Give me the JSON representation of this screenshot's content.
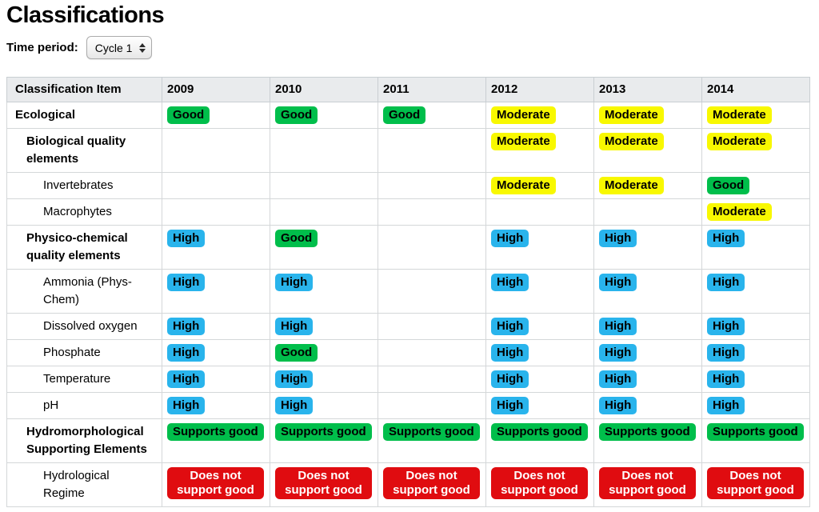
{
  "page": {
    "title": "Classifications"
  },
  "controls": {
    "time_period_label": "Time period:",
    "time_period_value": "Cycle 1"
  },
  "statuses": {
    "good": {
      "bg": "#00be4b",
      "fg": "#000000"
    },
    "moderate": {
      "bg": "#f8f800",
      "fg": "#000000"
    },
    "high": {
      "bg": "#29b4ec",
      "fg": "#000000"
    },
    "supports_good": {
      "bg": "#00be4b",
      "fg": "#000000"
    },
    "does_not_support_good": {
      "bg": "#e00c10",
      "fg": "#ffffff"
    }
  },
  "table": {
    "columns": [
      "Classification Item",
      "2009",
      "2010",
      "2011",
      "2012",
      "2013",
      "2014"
    ],
    "rows": [
      {
        "label": "Ecological",
        "indent": 0,
        "bold": true,
        "cells": [
          {
            "label": "Good",
            "status": "good"
          },
          {
            "label": "Good",
            "status": "good"
          },
          {
            "label": "Good",
            "status": "good"
          },
          {
            "label": "Moderate",
            "status": "moderate"
          },
          {
            "label": "Moderate",
            "status": "moderate"
          },
          {
            "label": "Moderate",
            "status": "moderate"
          }
        ]
      },
      {
        "label": "Biological quality elements",
        "indent": 1,
        "bold": true,
        "cells": [
          null,
          null,
          null,
          {
            "label": "Moderate",
            "status": "moderate"
          },
          {
            "label": "Moderate",
            "status": "moderate"
          },
          {
            "label": "Moderate",
            "status": "moderate"
          }
        ]
      },
      {
        "label": "Invertebrates",
        "indent": 2,
        "bold": false,
        "cells": [
          null,
          null,
          null,
          {
            "label": "Moderate",
            "status": "moderate"
          },
          {
            "label": "Moderate",
            "status": "moderate"
          },
          {
            "label": "Good",
            "status": "good"
          }
        ]
      },
      {
        "label": "Macrophytes",
        "indent": 2,
        "bold": false,
        "cells": [
          null,
          null,
          null,
          null,
          null,
          {
            "label": "Moderate",
            "status": "moderate"
          }
        ]
      },
      {
        "label": "Physico-chemical quality elements",
        "indent": 1,
        "bold": true,
        "cells": [
          {
            "label": "High",
            "status": "high"
          },
          {
            "label": "Good",
            "status": "good"
          },
          null,
          {
            "label": "High",
            "status": "high"
          },
          {
            "label": "High",
            "status": "high"
          },
          {
            "label": "High",
            "status": "high"
          }
        ]
      },
      {
        "label": "Ammonia (Phys-Chem)",
        "indent": 2,
        "bold": false,
        "cells": [
          {
            "label": "High",
            "status": "high"
          },
          {
            "label": "High",
            "status": "high"
          },
          null,
          {
            "label": "High",
            "status": "high"
          },
          {
            "label": "High",
            "status": "high"
          },
          {
            "label": "High",
            "status": "high"
          }
        ]
      },
      {
        "label": "Dissolved oxygen",
        "indent": 2,
        "bold": false,
        "cells": [
          {
            "label": "High",
            "status": "high"
          },
          {
            "label": "High",
            "status": "high"
          },
          null,
          {
            "label": "High",
            "status": "high"
          },
          {
            "label": "High",
            "status": "high"
          },
          {
            "label": "High",
            "status": "high"
          }
        ]
      },
      {
        "label": "Phosphate",
        "indent": 2,
        "bold": false,
        "cells": [
          {
            "label": "High",
            "status": "high"
          },
          {
            "label": "Good",
            "status": "good"
          },
          null,
          {
            "label": "High",
            "status": "high"
          },
          {
            "label": "High",
            "status": "high"
          },
          {
            "label": "High",
            "status": "high"
          }
        ]
      },
      {
        "label": "Temperature",
        "indent": 2,
        "bold": false,
        "cells": [
          {
            "label": "High",
            "status": "high"
          },
          {
            "label": "High",
            "status": "high"
          },
          null,
          {
            "label": "High",
            "status": "high"
          },
          {
            "label": "High",
            "status": "high"
          },
          {
            "label": "High",
            "status": "high"
          }
        ]
      },
      {
        "label": "pH",
        "indent": 2,
        "bold": false,
        "cells": [
          {
            "label": "High",
            "status": "high"
          },
          {
            "label": "High",
            "status": "high"
          },
          null,
          {
            "label": "High",
            "status": "high"
          },
          {
            "label": "High",
            "status": "high"
          },
          {
            "label": "High",
            "status": "high"
          }
        ]
      },
      {
        "label": "Hydromorphological Supporting Elements",
        "indent": 1,
        "bold": true,
        "cells": [
          {
            "label": "Supports good",
            "status": "supports_good"
          },
          {
            "label": "Supports good",
            "status": "supports_good"
          },
          {
            "label": "Supports good",
            "status": "supports_good"
          },
          {
            "label": "Supports good",
            "status": "supports_good"
          },
          {
            "label": "Supports good",
            "status": "supports_good"
          },
          {
            "label": "Supports good",
            "status": "supports_good"
          }
        ]
      },
      {
        "label": "Hydrological Regime",
        "indent": 2,
        "bold": false,
        "cells": [
          {
            "label": "Does not support good",
            "status": "does_not_support_good"
          },
          {
            "label": "Does not support good",
            "status": "does_not_support_good"
          },
          {
            "label": "Does not support good",
            "status": "does_not_support_good"
          },
          {
            "label": "Does not support good",
            "status": "does_not_support_good"
          },
          {
            "label": "Does not support good",
            "status": "does_not_support_good"
          },
          {
            "label": "Does not support good",
            "status": "does_not_support_good"
          }
        ]
      }
    ]
  }
}
